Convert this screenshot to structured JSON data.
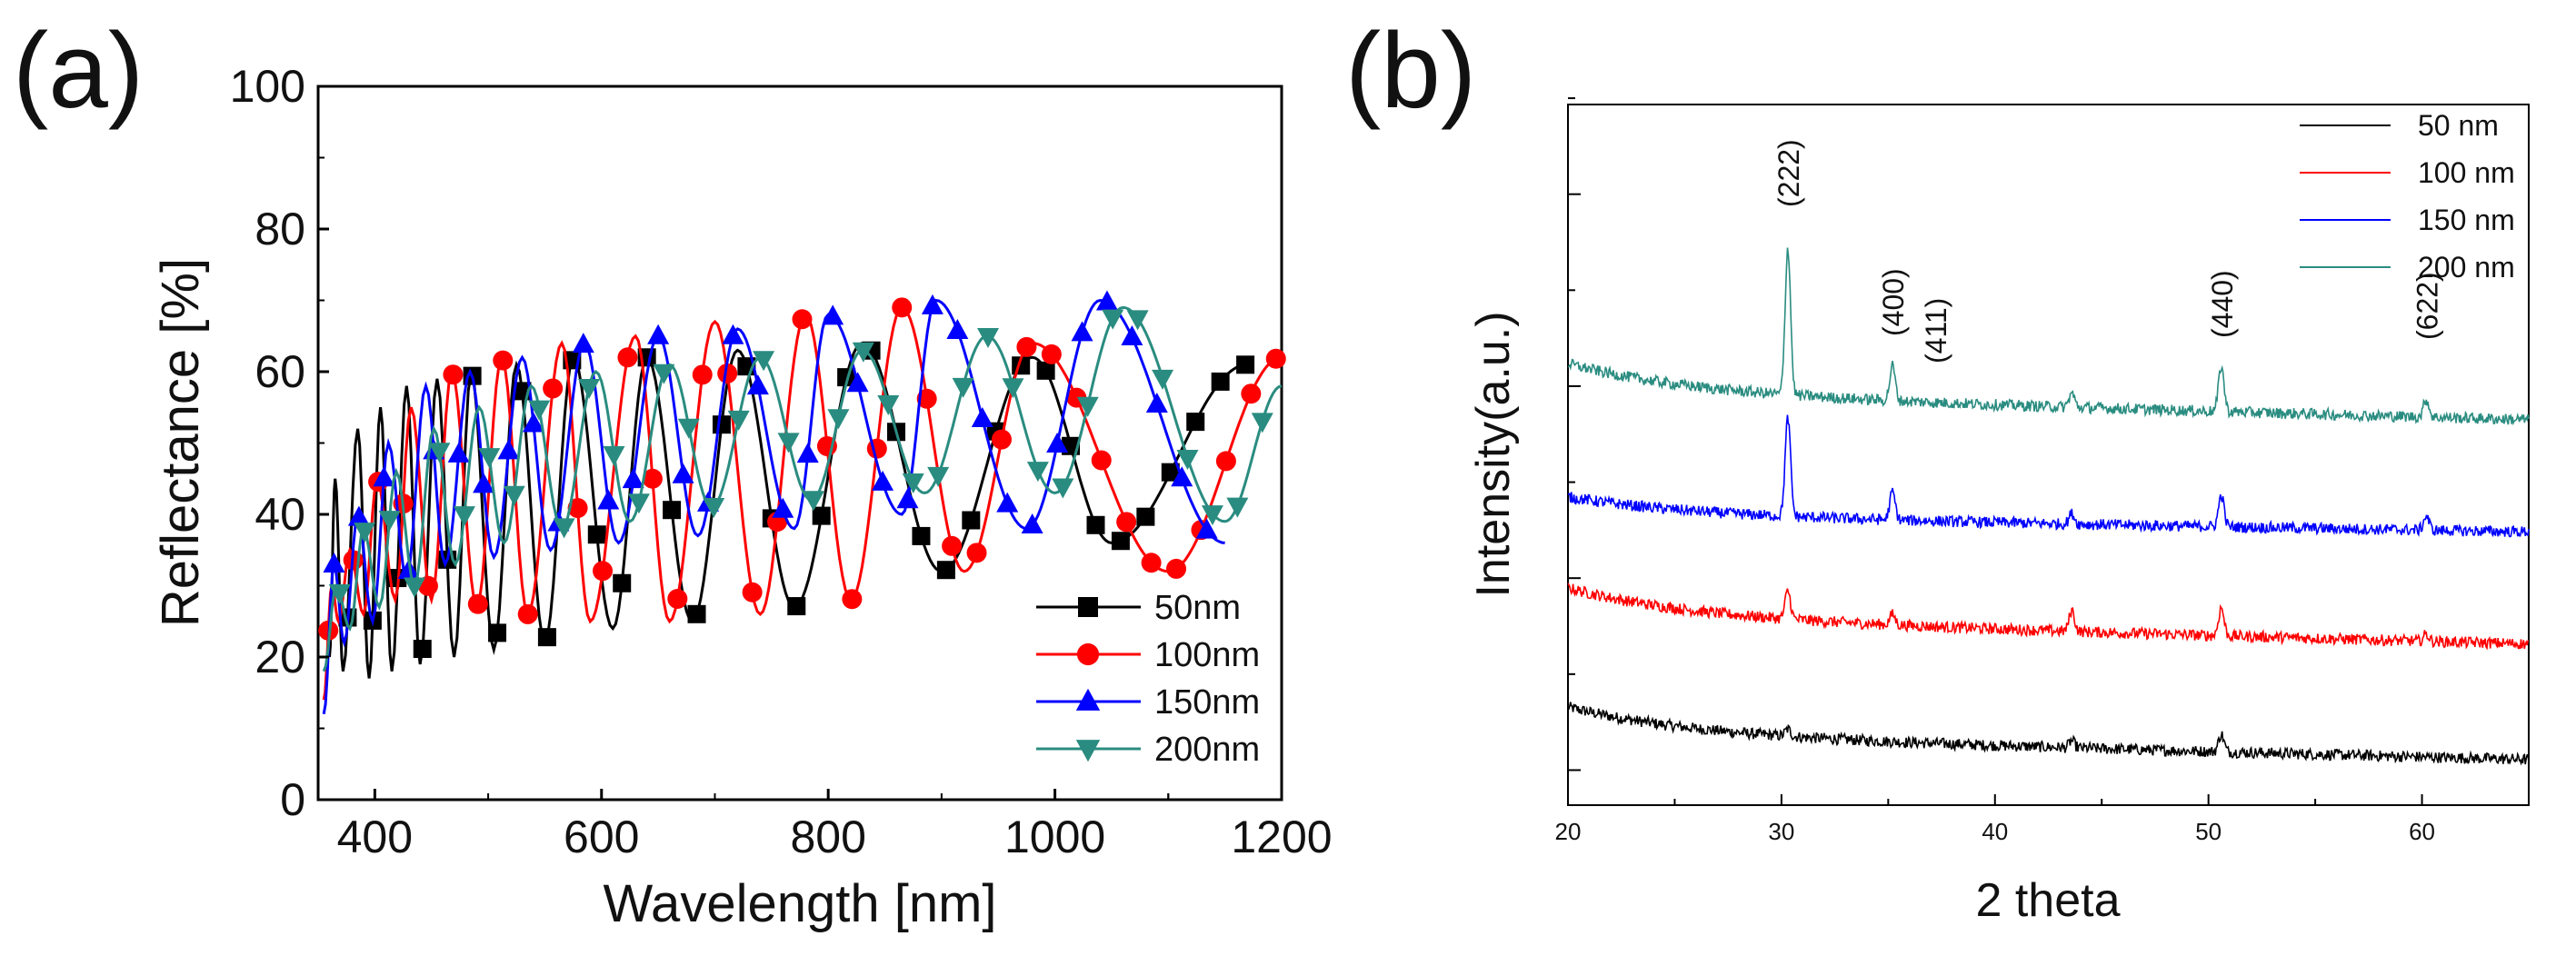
{
  "chart_data": [
    {
      "panel": "(a)",
      "type": "line",
      "title": "",
      "xlabel": "Wavelength [nm]",
      "ylabel": "Reflectance [%]",
      "xlim": [
        350,
        1200
      ],
      "ylim": [
        0,
        100
      ],
      "xticks": [
        "400",
        "600",
        "800",
        "1000",
        "1200"
      ],
      "yticks": [
        "0",
        "20",
        "40",
        "60",
        "80",
        "100"
      ],
      "legend_position": "bottom-right",
      "series": [
        {
          "name": "50nm",
          "color": "#000000",
          "marker": "square",
          "minima": [
            [
              360,
              20
            ],
            [
              372,
              18
            ],
            [
              395,
              17
            ],
            [
              415,
              18
            ],
            [
              440,
              19
            ],
            [
              470,
              20
            ],
            [
              505,
              21
            ],
            [
              550,
              22
            ],
            [
              610,
              24
            ],
            [
              680,
              25
            ],
            [
              770,
              27
            ],
            [
              900,
              32
            ],
            [
              1050,
              36
            ]
          ],
          "maxima": [
            [
              365,
              45
            ],
            [
              385,
              52
            ],
            [
              405,
              55
            ],
            [
              428,
              58
            ],
            [
              455,
              59
            ],
            [
              485,
              60
            ],
            [
              525,
              61
            ],
            [
              575,
              62
            ],
            [
              640,
              62
            ],
            [
              720,
              63
            ],
            [
              830,
              64
            ],
            [
              980,
              62
            ],
            [
              1170,
              61
            ]
          ]
        },
        {
          "name": "100nm",
          "color": "#ff0000",
          "marker": "circle",
          "minima": [
            [
              355,
              14
            ],
            [
              368,
              25
            ],
            [
              390,
              26
            ],
            [
              418,
              28
            ],
            [
              450,
              28
            ],
            [
              490,
              27
            ],
            [
              535,
              26
            ],
            [
              590,
              25
            ],
            [
              660,
              25
            ],
            [
              740,
              26
            ],
            [
              820,
              28
            ],
            [
              920,
              32
            ],
            [
              1100,
              32
            ]
          ],
          "maxima": [
            [
              362,
              30
            ],
            [
              378,
              35
            ],
            [
              402,
              45
            ],
            [
              432,
              55
            ],
            [
              468,
              60
            ],
            [
              512,
              62
            ],
            [
              565,
              64
            ],
            [
              630,
              65
            ],
            [
              700,
              67
            ],
            [
              780,
              68
            ],
            [
              865,
              69
            ],
            [
              980,
              64
            ],
            [
              1200,
              62
            ]
          ]
        },
        {
          "name": "150nm",
          "color": "#0000ff",
          "marker": "triangle-up",
          "minima": [
            [
              355,
              12
            ],
            [
              373,
              22
            ],
            [
              398,
              25
            ],
            [
              428,
              31
            ],
            [
              462,
              33
            ],
            [
              505,
              34
            ],
            [
              555,
              35
            ],
            [
              615,
              36
            ],
            [
              685,
              37
            ],
            [
              770,
              38
            ],
            [
              865,
              40
            ],
            [
              975,
              38
            ],
            [
              1150,
              36
            ]
          ],
          "maxima": [
            [
              364,
              33
            ],
            [
              385,
              40
            ],
            [
              412,
              50
            ],
            [
              445,
              58
            ],
            [
              484,
              60
            ],
            [
              530,
              62
            ],
            [
              585,
              64
            ],
            [
              650,
              65
            ],
            [
              720,
              66
            ],
            [
              800,
              68
            ],
            [
              895,
              70
            ],
            [
              1040,
              70
            ]
          ]
        },
        {
          "name": "200nm",
          "color": "#2a8c80",
          "marker": "triangle-down",
          "minima": [
            [
              355,
              18
            ],
            [
              378,
              24
            ],
            [
              404,
              27
            ],
            [
              435,
              30
            ],
            [
              471,
              33
            ],
            [
              514,
              36
            ],
            [
              565,
              38
            ],
            [
              625,
              39
            ],
            [
              697,
              41
            ],
            [
              785,
              42
            ],
            [
              885,
              43
            ],
            [
              1000,
              43
            ],
            [
              1150,
              39
            ]
          ],
          "maxima": [
            [
              366,
              30
            ],
            [
              390,
              38
            ],
            [
              419,
              46
            ],
            [
              452,
              52
            ],
            [
              492,
              55
            ],
            [
              538,
              58
            ],
            [
              595,
              60
            ],
            [
              660,
              61
            ],
            [
              740,
              62
            ],
            [
              830,
              63
            ],
            [
              940,
              65
            ],
            [
              1060,
              69
            ],
            [
              1200,
              58
            ]
          ]
        }
      ]
    },
    {
      "panel": "(b)",
      "type": "line",
      "title": "",
      "xlabel": "2 theta",
      "ylabel": "Intensity(a.u.)",
      "xlim": [
        20,
        65
      ],
      "xticks": [
        "20",
        "30",
        "40",
        "50",
        "60"
      ],
      "yticks_labeled": false,
      "legend_position": "top-right",
      "peak_labels": [
        {
          "label": "(222)",
          "x": 30.3
        },
        {
          "label": "(400)",
          "x": 35.2
        },
        {
          "label": "(411)",
          "x": 37.2
        },
        {
          "label": "(440)",
          "x": 50.6
        },
        {
          "label": "(622)",
          "x": 60.2
        }
      ],
      "series": [
        {
          "name": "50 nm",
          "color": "#000000",
          "offset": 0,
          "start_level": 14,
          "end_level": 6.5,
          "peaks": [
            [
              30.3,
              1.0
            ],
            [
              43.6,
              1.0
            ],
            [
              50.6,
              2.5
            ]
          ]
        },
        {
          "name": "100 nm",
          "color": "#ff0000",
          "offset": 1,
          "start_level": 31,
          "end_level": 23,
          "peaks": [
            [
              30.3,
              4.0
            ],
            [
              35.2,
              1.5
            ],
            [
              43.6,
              3.0
            ],
            [
              50.6,
              4.0
            ],
            [
              60.2,
              1.0
            ]
          ]
        },
        {
          "name": "150 nm",
          "color": "#0000ff",
          "offset": 2,
          "start_level": 44,
          "end_level": 39,
          "peaks": [
            [
              30.3,
              14.0
            ],
            [
              35.2,
              4.0
            ],
            [
              43.6,
              1.5
            ],
            [
              50.6,
              4.5
            ],
            [
              60.2,
              2.0
            ]
          ]
        },
        {
          "name": "200 nm",
          "color": "#2a8c80",
          "offset": 3,
          "start_level": 63,
          "end_level": 55,
          "peaks": [
            [
              30.3,
              21.0
            ],
            [
              35.2,
              5.0
            ],
            [
              43.6,
              2.0
            ],
            [
              50.6,
              6.5
            ],
            [
              60.2,
              2.5
            ]
          ]
        }
      ]
    }
  ]
}
